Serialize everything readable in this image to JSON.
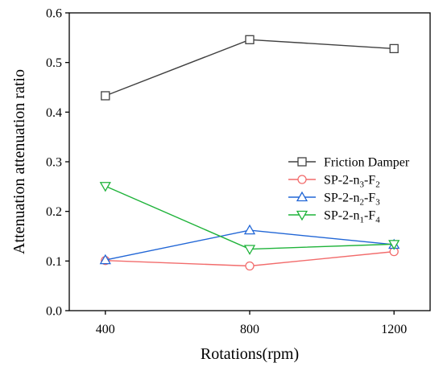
{
  "chart_data": {
    "type": "line",
    "title": "",
    "xlabel": "Rotations(rpm)",
    "ylabel": "Attenuation attenuation ratio",
    "categories": [
      "400",
      "800",
      "1200"
    ],
    "x": [
      400,
      800,
      1200
    ],
    "xlim": [
      300,
      1300
    ],
    "ylim": [
      0.0,
      0.6
    ],
    "yticks": [
      "0.0",
      "0.1",
      "0.2",
      "0.3",
      "0.4",
      "0.5",
      "0.6"
    ],
    "grid": false,
    "legend_position": "center-right",
    "series": [
      {
        "name": "Friction Damper",
        "legend": {
          "base": "Friction Damper",
          "sub1": "",
          "mid": "",
          "sub2": ""
        },
        "marker": "square",
        "color": "#404040",
        "values": [
          0.433,
          0.546,
          0.528
        ]
      },
      {
        "name": "SP-2-n3-F2",
        "legend": {
          "base": "SP-2-n",
          "sub1": "3",
          "mid": "-F",
          "sub2": "2"
        },
        "marker": "circle",
        "color": "#f26c6c",
        "values": [
          0.101,
          0.09,
          0.119
        ]
      },
      {
        "name": "SP-2-n2-F3",
        "legend": {
          "base": "SP-2-n",
          "sub1": "2",
          "mid": "-F",
          "sub2": "3"
        },
        "marker": "triangle-up",
        "color": "#2166d6",
        "values": [
          0.102,
          0.162,
          0.133
        ]
      },
      {
        "name": "SP-2-n1-F4",
        "legend": {
          "base": "SP-2-n",
          "sub1": "1",
          "mid": "-F",
          "sub2": "4"
        },
        "marker": "triangle-down",
        "color": "#1fb33a",
        "values": [
          0.251,
          0.124,
          0.134
        ]
      }
    ]
  }
}
